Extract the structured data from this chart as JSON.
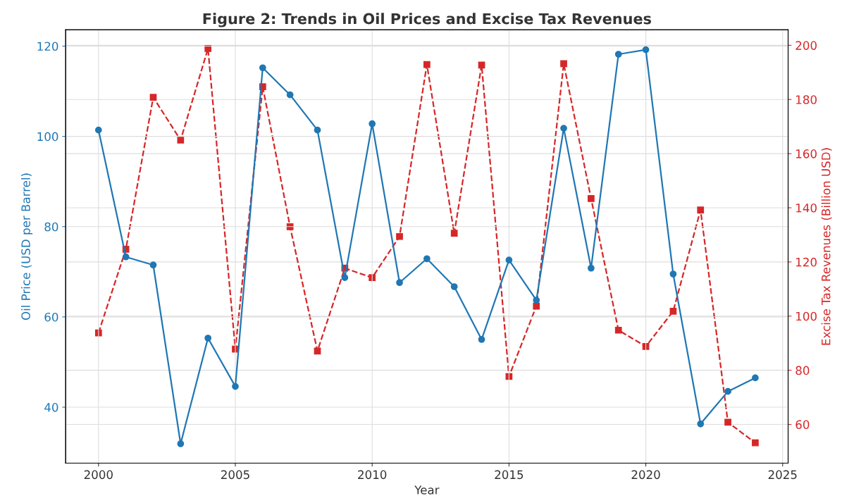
{
  "chart_data": {
    "type": "line",
    "title": "Figure 2: Trends in Oil Prices and Excise Tax Revenues",
    "xlabel": "Year",
    "ylabel": "Oil Price (USD per Barrel)",
    "y2label": "Excise Tax Revenues (Billion USD)",
    "x": [
      2000,
      2001,
      2002,
      2003,
      2004,
      2005,
      2006,
      2007,
      2008,
      2009,
      2010,
      2011,
      2012,
      2013,
      2014,
      2015,
      2016,
      2017,
      2018,
      2019,
      2020,
      2021,
      2022,
      2023,
      2024
    ],
    "series": [
      {
        "color": "#1f77b4",
        "marker": "circle",
        "line_style": "solid",
        "values": [
          101.4,
          73.3,
          71.5,
          31.9,
          55.3,
          44.6,
          115.2,
          109.2,
          101.4,
          68.7,
          102.8,
          67.6,
          72.9,
          66.7,
          55.0,
          72.6,
          63.7,
          101.8,
          70.8,
          118.2,
          119.2,
          69.5,
          36.3,
          43.5,
          46.5
        ]
      },
      {
        "color": "#d62728",
        "marker": "square",
        "line_style": "dashed",
        "axis": "y2",
        "values": [
          93.8,
          124.7,
          180.8,
          165.0,
          198.8,
          87.8,
          184.7,
          133.0,
          87.1,
          117.7,
          114.2,
          129.4,
          192.9,
          130.6,
          192.7,
          77.7,
          103.7,
          193.2,
          143.4,
          94.8,
          88.8,
          101.8,
          139.2,
          60.8,
          53.2
        ]
      }
    ],
    "xlim": [
      1998.8,
      2025.2
    ],
    "xticks": [
      2000,
      2005,
      2010,
      2015,
      2020,
      2025
    ],
    "ylim": [
      27.6,
      123.6
    ],
    "yticks": [
      40,
      60,
      80,
      100,
      120
    ],
    "y2lim": [
      45.7,
      205.7
    ],
    "y2ticks": [
      60,
      80,
      100,
      120,
      140,
      160,
      180,
      200
    ],
    "grid": true,
    "legend": false
  }
}
